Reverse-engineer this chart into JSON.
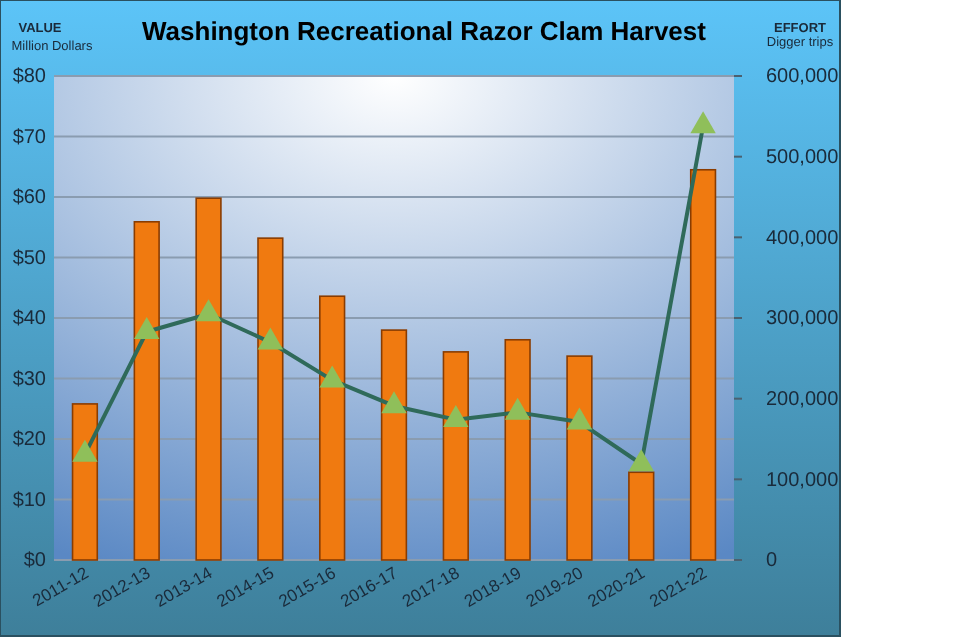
{
  "chart_data": {
    "type": "bar",
    "title": "Washington Recreational Razor Clam Harvest",
    "ylabel": "VALUE",
    "y2label": "EFFORT",
    "annotations": [
      "Million Dollars",
      "Digger trips"
    ],
    "categories": [
      "2011-12",
      "2012-13",
      "2013-14",
      "2014-15",
      "2015-16",
      "2016-17",
      "2017-18",
      "2018-19",
      "2019-20",
      "2020-21",
      "2021-22"
    ],
    "series": [
      {
        "color": "#f07a10",
        "values": [
          25.8,
          55.9,
          59.8,
          53.2,
          43.6,
          38,
          34.4,
          36.4,
          33.7,
          14.5,
          64.5
        ]
      },
      {
        "type": "line",
        "axis": "y2",
        "color": "#2f6a5a",
        "marker": "triangle",
        "values": [
          131000,
          283000,
          305000,
          270000,
          223000,
          191000,
          174000,
          183000,
          171000,
          119000,
          538000
        ]
      }
    ],
    "ylim": [
      0,
      80
    ],
    "yticks": [
      {
        "value": 0,
        "label": "$0"
      },
      {
        "value": 10,
        "label": "$10"
      },
      {
        "value": 20,
        "label": "$20"
      },
      {
        "value": 30,
        "label": "$30"
      },
      {
        "value": 40,
        "label": "$40"
      },
      {
        "value": 50,
        "label": "$50"
      },
      {
        "value": 60,
        "label": "$60"
      },
      {
        "value": 70,
        "label": "$70"
      },
      {
        "value": 80,
        "label": "$80"
      }
    ],
    "y2lim": [
      0,
      600000
    ],
    "y2ticks": [
      {
        "value": 0,
        "label": "0"
      },
      {
        "value": 100000,
        "label": "100,000"
      },
      {
        "value": 200000,
        "label": "200,000"
      },
      {
        "value": 300000,
        "label": "300,000"
      },
      {
        "value": 400000,
        "label": "400,000"
      },
      {
        "value": 500000,
        "label": "500,000"
      },
      {
        "value": 600000,
        "label": "600,000"
      }
    ],
    "grid": "y"
  }
}
